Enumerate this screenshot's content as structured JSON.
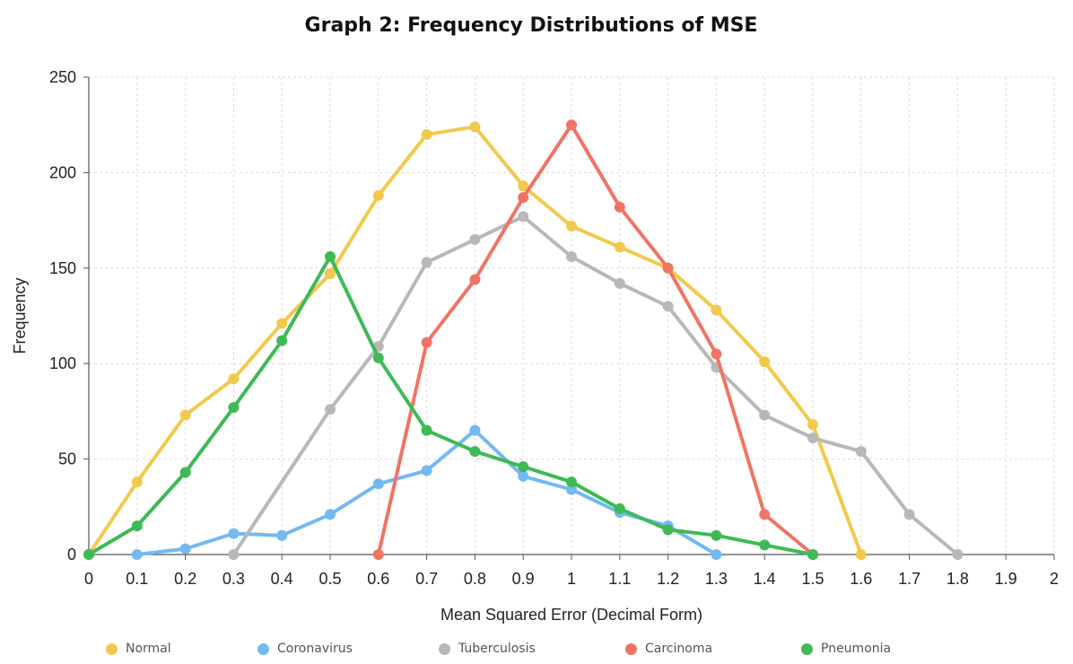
{
  "chart_data": {
    "type": "line",
    "title": "Graph 2: Frequency Distributions of MSE",
    "xlabel": "Mean Squared Error (Decimal Form)",
    "ylabel": "Frequency",
    "xlim": [
      0,
      2
    ],
    "ylim": [
      0,
      250
    ],
    "x_ticks": [
      "0",
      "0.1",
      "0.2",
      "0.3",
      "0.4",
      "0.5",
      "0.6",
      "0.7",
      "0.8",
      "0.9",
      "1",
      "1.1",
      "1.2",
      "1.3",
      "1.4",
      "1.5",
      "1.6",
      "1.7",
      "1.8",
      "1.9",
      "2"
    ],
    "y_ticks": [
      "0",
      "50",
      "100",
      "150",
      "200",
      "250"
    ],
    "grid": true,
    "legend_position": "bottom",
    "series": [
      {
        "name": "Normal",
        "color": "#f2c94c",
        "x": [
          0,
          0.1,
          0.2,
          0.3,
          0.4,
          0.5,
          0.6,
          0.7,
          0.8,
          0.9,
          1.0,
          1.1,
          1.2,
          1.3,
          1.4,
          1.5,
          1.6
        ],
        "values": [
          0,
          38,
          73,
          92,
          121,
          147,
          188,
          220,
          224,
          193,
          172,
          161,
          150,
          128,
          101,
          68,
          0
        ]
      },
      {
        "name": "Coronavirus",
        "color": "#73b9f2",
        "x": [
          0.1,
          0.2,
          0.3,
          0.4,
          0.5,
          0.6,
          0.7,
          0.8,
          0.9,
          1.0,
          1.1,
          1.2,
          1.3
        ],
        "values": [
          0,
          3,
          11,
          10,
          21,
          37,
          44,
          65,
          41,
          34,
          22,
          15,
          0
        ]
      },
      {
        "name": "Tuberculosis",
        "color": "#b8b8b8",
        "x": [
          0.3,
          0.5,
          0.6,
          0.7,
          0.8,
          0.9,
          1.0,
          1.1,
          1.2,
          1.3,
          1.4,
          1.5,
          1.6,
          1.7,
          1.8
        ],
        "values": [
          0,
          76,
          109,
          153,
          165,
          177,
          156,
          142,
          130,
          98,
          73,
          61,
          54,
          21,
          0
        ]
      },
      {
        "name": "Carcinoma",
        "color": "#f07464",
        "x": [
          0.6,
          0.7,
          0.8,
          0.9,
          1.0,
          1.1,
          1.2,
          1.3,
          1.4,
          1.5
        ],
        "values": [
          0,
          111,
          144,
          187,
          225,
          182,
          150,
          105,
          21,
          0
        ]
      },
      {
        "name": "Pneumonia",
        "color": "#3dba55",
        "x": [
          0,
          0.1,
          0.2,
          0.3,
          0.4,
          0.5,
          0.6,
          0.7,
          0.8,
          0.9,
          1.0,
          1.1,
          1.2,
          1.3,
          1.4,
          1.5
        ],
        "values": [
          0,
          15,
          43,
          77,
          112,
          156,
          103,
          65,
          54,
          46,
          38,
          24,
          13,
          10,
          5,
          0
        ]
      }
    ]
  }
}
